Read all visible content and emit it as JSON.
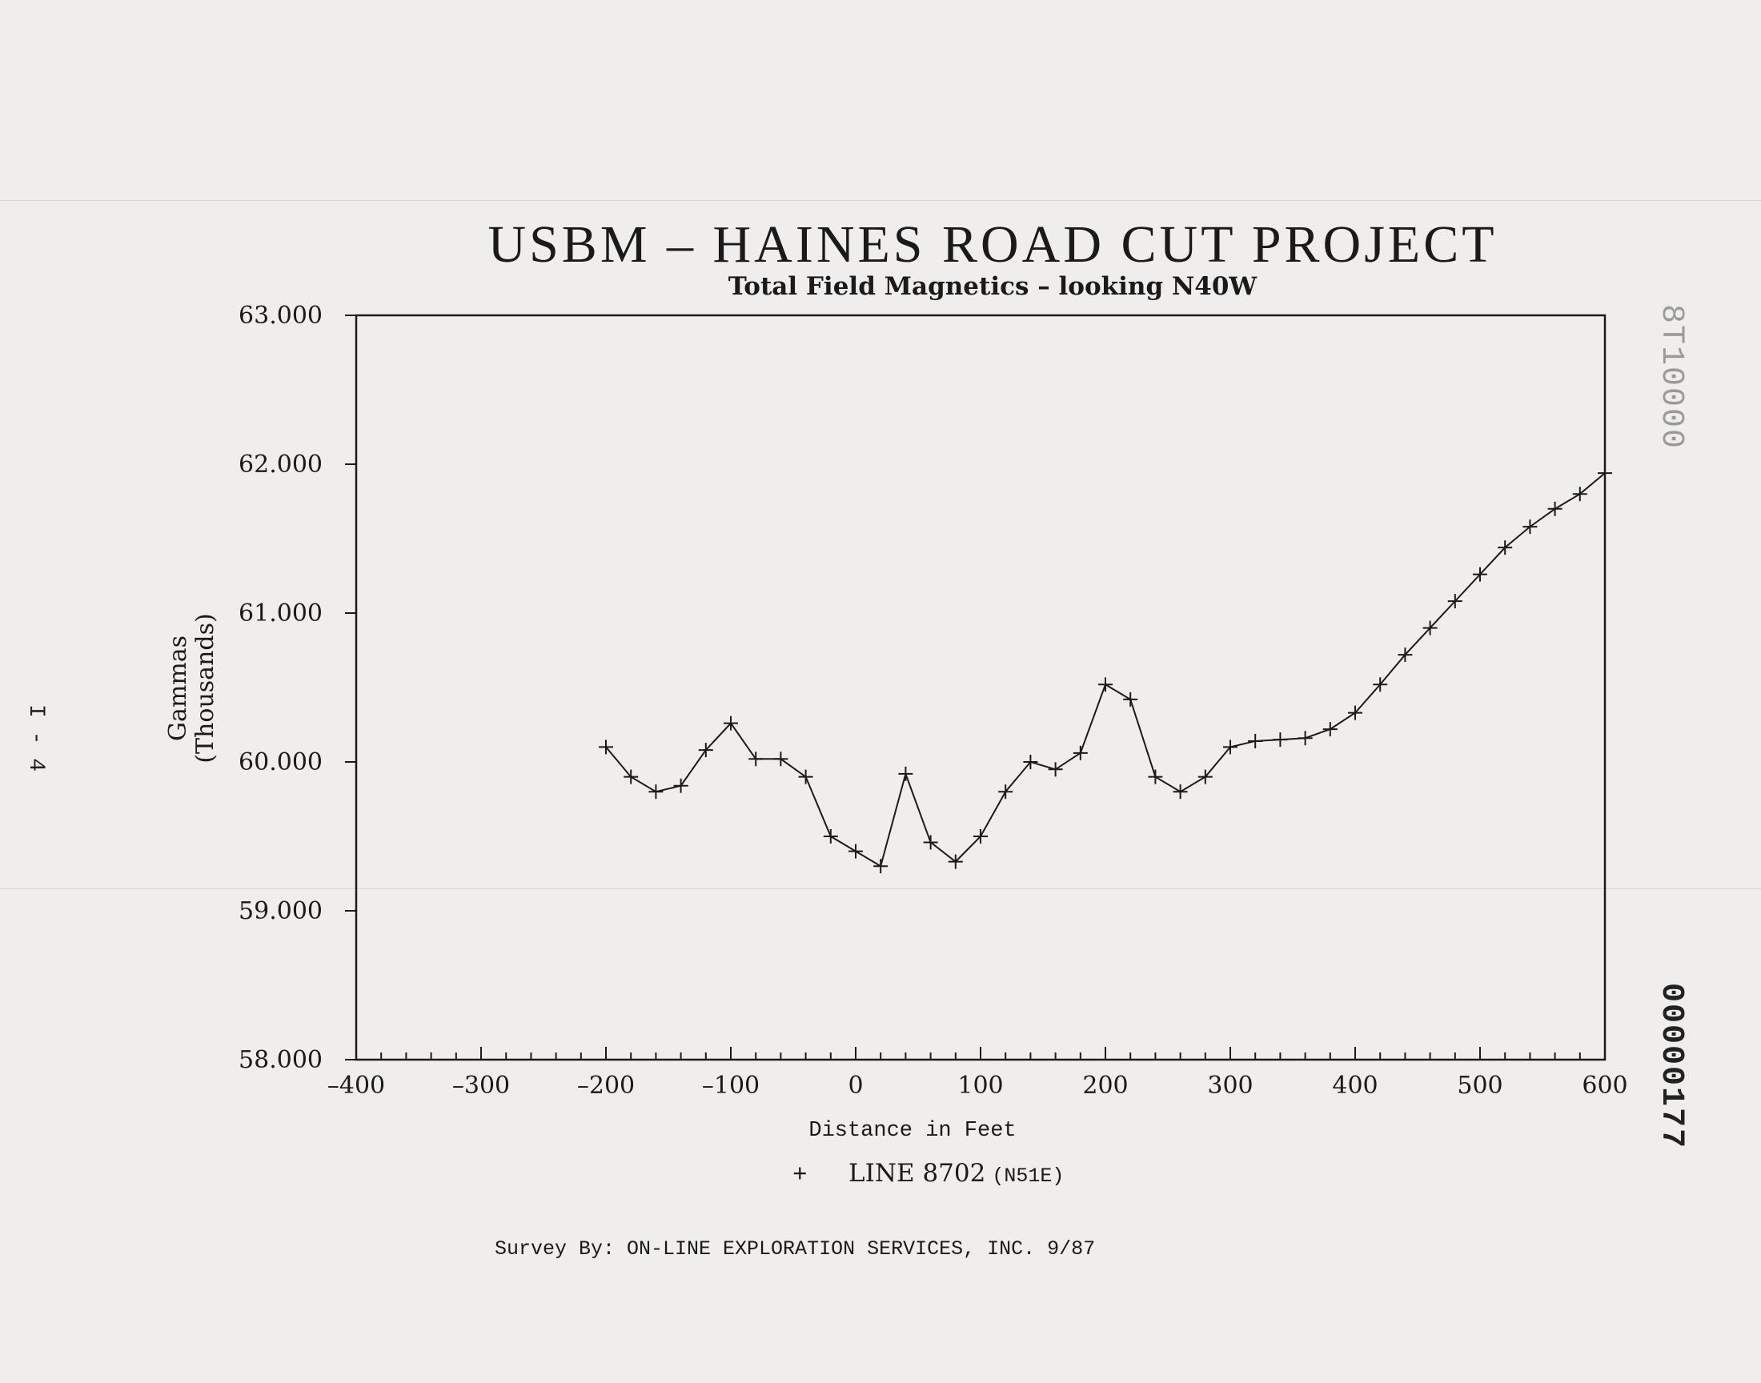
{
  "document": {
    "page_number": "I - 4",
    "stamp_top": "8T10000",
    "stamp_bottom": "00000177",
    "credit": "Survey By:  ON-LINE EXPLORATION SERVICES, INC.  9/87"
  },
  "chart_data": {
    "type": "line",
    "title": "USBM – HAINES ROAD CUT PROJECT",
    "subtitle": "Total Field Magnetics – looking N40W",
    "xlabel": "Distance in Feet",
    "ylabel_line1": "Gammas",
    "ylabel_line2": "(Thousands)",
    "xlim": [
      -400,
      600
    ],
    "ylim": [
      58,
      63
    ],
    "x_ticks": [
      -400,
      -300,
      -200,
      -100,
      0,
      100,
      200,
      300,
      400,
      500,
      600
    ],
    "x_tick_labels": [
      "–400",
      "–300",
      "–200",
      "–100",
      "0",
      "100",
      "200",
      "300",
      "400",
      "500",
      "600"
    ],
    "y_ticks": [
      58,
      59,
      60,
      61,
      62,
      63
    ],
    "y_tick_labels": [
      "58.000",
      "59.000",
      "60.000",
      "61.000",
      "62.000",
      "63.000"
    ],
    "legend": {
      "marker": "+",
      "label": "LINE 8702",
      "sublabel": "(N51E)",
      "placement": "bottom-center"
    },
    "grid": false,
    "series": [
      {
        "name": "LINE 8702",
        "x": [
          -200,
          -180,
          -160,
          -140,
          -120,
          -100,
          -80,
          -60,
          -40,
          -20,
          0,
          20,
          40,
          60,
          80,
          100,
          120,
          140,
          160,
          180,
          200,
          220,
          240,
          260,
          280,
          300,
          320,
          340,
          360,
          380,
          400,
          420,
          440,
          460,
          480,
          500,
          520,
          540,
          560,
          580,
          600
        ],
        "y": [
          60.1,
          59.9,
          59.8,
          59.84,
          60.08,
          60.26,
          60.02,
          60.02,
          59.9,
          59.5,
          59.4,
          59.3,
          59.92,
          59.46,
          59.33,
          59.5,
          59.8,
          60.0,
          59.95,
          60.06,
          60.52,
          60.42,
          59.9,
          59.8,
          59.9,
          60.1,
          60.14,
          60.15,
          60.16,
          60.22,
          60.33,
          60.52,
          60.72,
          60.9,
          61.08,
          61.26,
          61.44,
          61.58,
          61.7,
          61.8,
          61.94
        ]
      }
    ]
  }
}
